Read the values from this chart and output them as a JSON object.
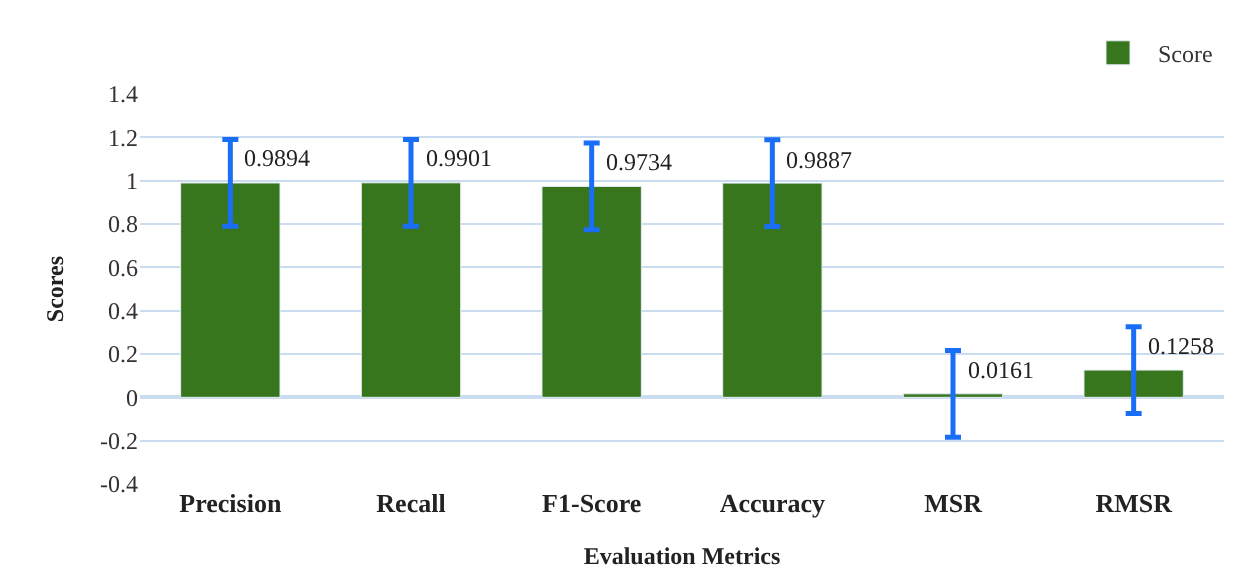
{
  "chart_data": {
    "type": "bar",
    "xlabel": "Evaluation Metrics",
    "ylabel": "Scores",
    "categories": [
      "Precision",
      "Recall",
      "F1-Score",
      "Accuracy",
      "MSR",
      "RMSR"
    ],
    "series": [
      {
        "name": "Score",
        "color": "#38761d",
        "values": [
          0.9894,
          0.9901,
          0.9734,
          0.9887,
          0.0161,
          0.1258
        ],
        "errors": [
          0.2,
          0.2,
          0.2,
          0.2,
          0.2,
          0.2
        ]
      }
    ],
    "ylim": [
      -0.4,
      1.4
    ],
    "yticks": [
      -0.4,
      -0.2,
      0,
      0.2,
      0.4,
      0.6,
      0.8,
      1,
      1.2,
      1.4
    ],
    "grid": "y",
    "legend": "top right",
    "data_labels": true
  }
}
